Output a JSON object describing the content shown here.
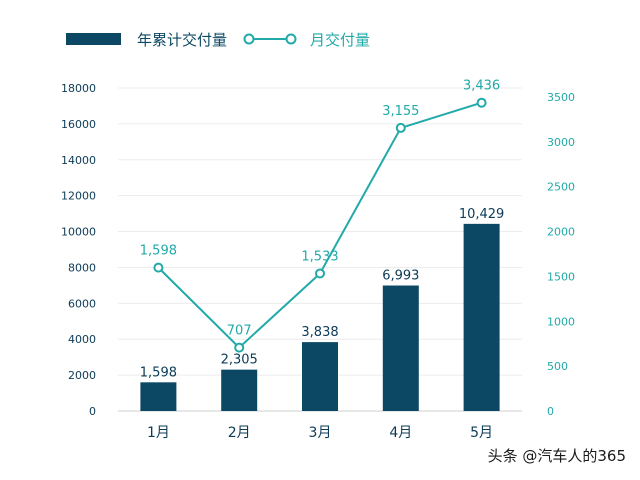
{
  "chart_data": {
    "type": "bar",
    "categories": [
      "1月",
      "2月",
      "3月",
      "4月",
      "5月"
    ],
    "series": [
      {
        "name": "年累计交付量",
        "type": "bar",
        "axis": "left",
        "values": [
          1598,
          2305,
          3838,
          6993,
          10429
        ],
        "labels": [
          "1,598",
          "2,305",
          "3,838",
          "6,993",
          "10,429"
        ]
      },
      {
        "name": "月交付量",
        "type": "line",
        "axis": "right",
        "values": [
          1598,
          707,
          1533,
          3155,
          3436
        ],
        "labels": [
          "1,598",
          "707",
          "1,533",
          "3,155",
          "3,436"
        ]
      }
    ],
    "y_left": {
      "min": 0,
      "max": 18000,
      "ticks": [
        "0",
        "2000",
        "4000",
        "6000",
        "8000",
        "10000",
        "12000",
        "14000",
        "16000",
        "18000"
      ]
    },
    "y_right": {
      "min": 0,
      "max": 3600,
      "ticks": [
        "0",
        "500",
        "1000",
        "1500",
        "2000",
        "2500",
        "3000",
        "3500"
      ]
    },
    "legend_position": "top-left",
    "grid": true,
    "colors": {
      "bar": "#0c4763",
      "line": "#22a9a9"
    }
  },
  "watermark": "头条 @汽车人的365"
}
